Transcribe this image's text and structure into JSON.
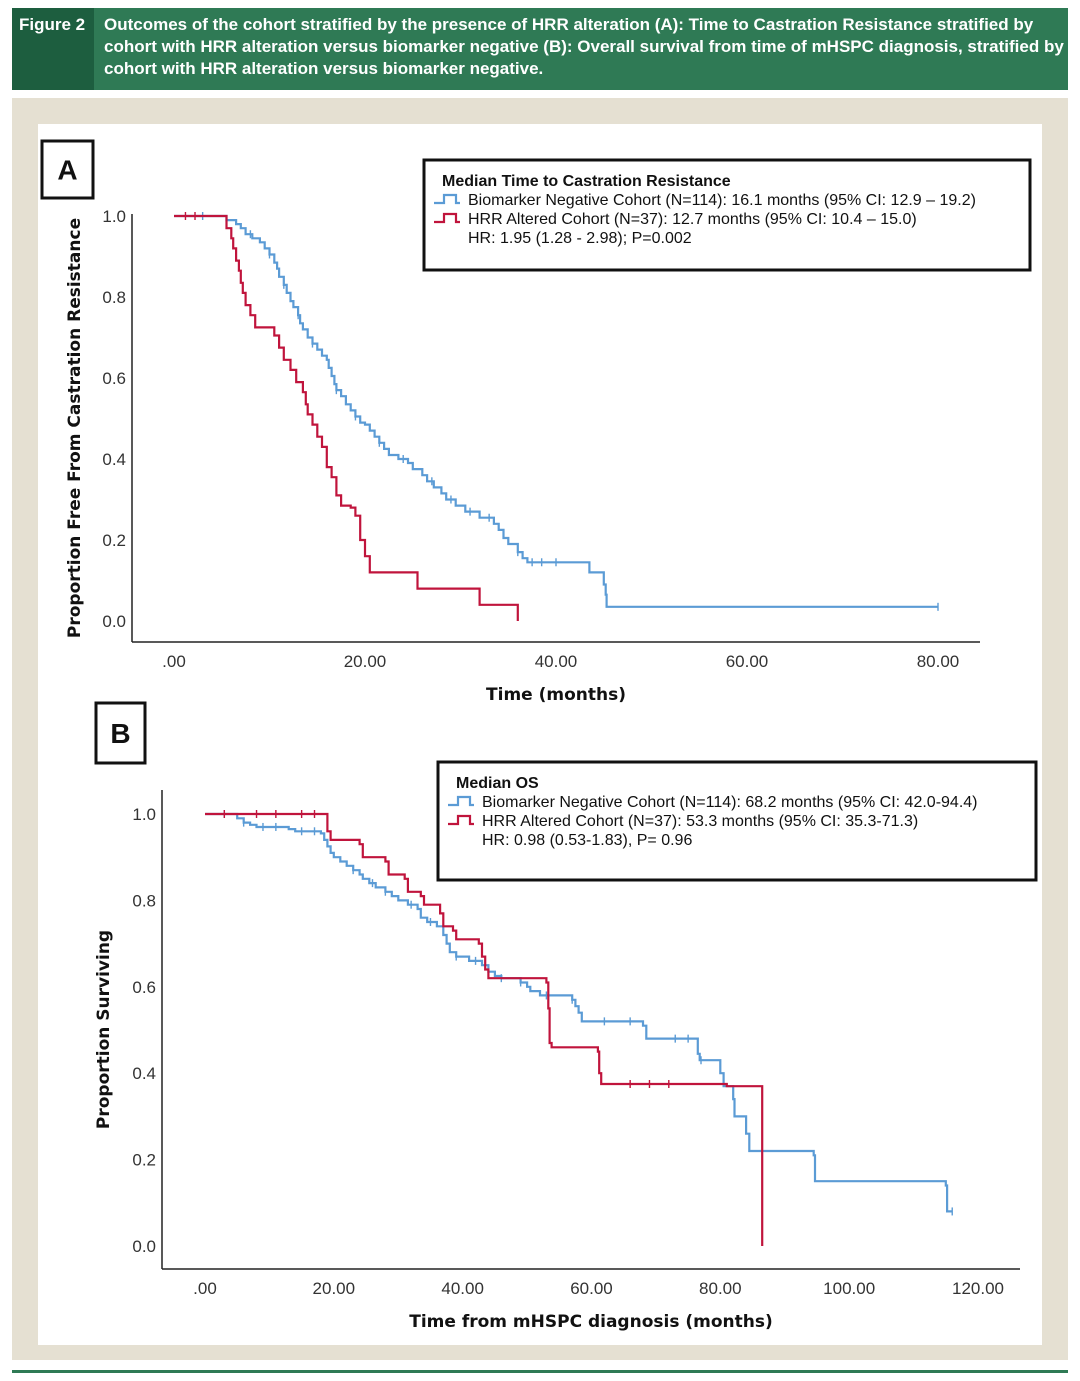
{
  "figure": {
    "label": "Figure 2",
    "caption": "Outcomes of the cohort stratified by the presence of HRR alteration (A): Time to Castration Resistance stratified by cohort with HRR alteration versus biomarker negative (B): Overall survival from time of mHSPC diagnosis, stratified by cohort with HRR alteration versus biomarker negative."
  },
  "colors": {
    "blue": "#5b9bd5",
    "red": "#c0143c",
    "green": "#2f7a55",
    "frame": "#e5e0d2"
  },
  "chart_data": [
    {
      "type": "line",
      "panel": "A",
      "title": "Time to Castration Resistance",
      "xlabel": "Time (months)",
      "ylabel": "Proportion Free From Castration Resistance",
      "xlim": [
        -2,
        84
      ],
      "ylim": [
        0,
        1.0
      ],
      "xticks": [
        ".00",
        "20.00",
        "40.00",
        "60.00",
        "80.00"
      ],
      "xtick_values": [
        0,
        20,
        40,
        60,
        80
      ],
      "yticks": [
        "0.0",
        "0.2",
        "0.4",
        "0.6",
        "0.8",
        "1.0"
      ],
      "ytick_values": [
        0,
        0.2,
        0.4,
        0.6,
        0.8,
        1.0
      ],
      "legend": {
        "title": "Median Time to Castration Resistance",
        "entries": [
          "Biomarker Negative Cohort (N=114): 16.1 months (95% CI: 12.9 – 19.2)",
          "HRR Altered Cohort (N=37): 12.7 months (95% CI: 10.4 – 15.0)"
        ],
        "note": "HR: 1.95 (1.28 - 2.98); P=0.002",
        "position": "top-right"
      },
      "series": [
        {
          "name": "Biomarker Negative Cohort",
          "color": "blue",
          "points": [
            [
              0,
              1.0
            ],
            [
              4.5,
              1.0
            ],
            [
              5.5,
              0.99
            ],
            [
              6.5,
              0.98
            ],
            [
              7,
              0.97
            ],
            [
              7.5,
              0.955
            ],
            [
              8.2,
              0.945
            ],
            [
              9,
              0.935
            ],
            [
              9.5,
              0.92
            ],
            [
              10,
              0.905
            ],
            [
              10.5,
              0.885
            ],
            [
              10.8,
              0.87
            ],
            [
              11,
              0.85
            ],
            [
              11.5,
              0.83
            ],
            [
              11.8,
              0.81
            ],
            [
              12.2,
              0.79
            ],
            [
              12.5,
              0.775
            ],
            [
              13,
              0.755
            ],
            [
              13.2,
              0.735
            ],
            [
              13.5,
              0.72
            ],
            [
              14,
              0.7
            ],
            [
              14.5,
              0.685
            ],
            [
              15,
              0.67
            ],
            [
              15.5,
              0.655
            ],
            [
              16,
              0.645
            ],
            [
              16.2,
              0.625
            ],
            [
              16.5,
              0.605
            ],
            [
              16.8,
              0.585
            ],
            [
              17,
              0.57
            ],
            [
              17.5,
              0.555
            ],
            [
              18,
              0.535
            ],
            [
              18.5,
              0.52
            ],
            [
              19,
              0.505
            ],
            [
              19.5,
              0.49
            ],
            [
              20,
              0.485
            ],
            [
              20.5,
              0.47
            ],
            [
              21,
              0.455
            ],
            [
              21.5,
              0.44
            ],
            [
              22,
              0.425
            ],
            [
              22.5,
              0.41
            ],
            [
              23.5,
              0.4
            ],
            [
              24.5,
              0.39
            ],
            [
              25,
              0.375
            ],
            [
              26,
              0.36
            ],
            [
              26.5,
              0.345
            ],
            [
              27.2,
              0.33
            ],
            [
              28,
              0.315
            ],
            [
              28.5,
              0.3
            ],
            [
              29.5,
              0.285
            ],
            [
              30.5,
              0.27
            ],
            [
              32,
              0.255
            ],
            [
              33.5,
              0.24
            ],
            [
              34,
              0.225
            ],
            [
              34.5,
              0.205
            ],
            [
              35,
              0.19
            ],
            [
              36,
              0.17
            ],
            [
              36.5,
              0.155
            ],
            [
              37,
              0.145
            ],
            [
              43.5,
              0.12
            ],
            [
              45,
              0.09
            ],
            [
              45.2,
              0.065
            ],
            [
              45.3,
              0.035
            ],
            [
              80,
              0.035
            ]
          ],
          "censor_x": [
            3,
            8,
            10,
            11.5,
            13,
            14.5,
            17,
            19,
            21.5,
            24,
            27,
            29,
            31,
            33,
            36,
            37.5,
            38.5,
            40,
            80
          ]
        },
        {
          "name": "HRR Altered Cohort",
          "color": "red",
          "points": [
            [
              0,
              1.0
            ],
            [
              4.5,
              1.0
            ],
            [
              5.5,
              0.97
            ],
            [
              6,
              0.945
            ],
            [
              6.2,
              0.92
            ],
            [
              6.5,
              0.89
            ],
            [
              6.8,
              0.865
            ],
            [
              7,
              0.835
            ],
            [
              7.2,
              0.81
            ],
            [
              7.5,
              0.78
            ],
            [
              8,
              0.755
            ],
            [
              8.5,
              0.725
            ],
            [
              10.5,
              0.705
            ],
            [
              11,
              0.675
            ],
            [
              11.5,
              0.645
            ],
            [
              12.2,
              0.62
            ],
            [
              12.8,
              0.59
            ],
            [
              13.5,
              0.565
            ],
            [
              13.8,
              0.535
            ],
            [
              14,
              0.51
            ],
            [
              14.5,
              0.485
            ],
            [
              15,
              0.455
            ],
            [
              15.5,
              0.43
            ],
            [
              16,
              0.38
            ],
            [
              16.5,
              0.355
            ],
            [
              17,
              0.31
            ],
            [
              17.5,
              0.285
            ],
            [
              18.5,
              0.28
            ],
            [
              19,
              0.26
            ],
            [
              19.5,
              0.2
            ],
            [
              20,
              0.16
            ],
            [
              20.5,
              0.12
            ],
            [
              25.5,
              0.08
            ],
            [
              32,
              0.04
            ],
            [
              36,
              0.04
            ],
            [
              36,
              0.0
            ]
          ],
          "censor_x": [
            1.2,
            2.2
          ]
        }
      ]
    },
    {
      "type": "line",
      "panel": "B",
      "title": "Overall survival from time of mHSPC diagnosis",
      "xlabel": "Time from mHSPC diagnosis (months)",
      "ylabel": "Proportion Surviving",
      "xlim": [
        -7,
        127
      ],
      "ylim": [
        0,
        1.0
      ],
      "xticks": [
        ".00",
        "20.00",
        "40.00",
        "60.00",
        "80.00",
        "100.00",
        "120.00"
      ],
      "xtick_values": [
        0,
        20,
        40,
        60,
        80,
        100,
        120
      ],
      "yticks": [
        "0.0",
        "0.2",
        "0.4",
        "0.6",
        "0.8",
        "1.0"
      ],
      "ytick_values": [
        0,
        0.2,
        0.4,
        0.6,
        0.8,
        1.0
      ],
      "legend": {
        "title": "Median OS",
        "entries": [
          "Biomarker Negative Cohort (N=114): 68.2 months (95% CI: 42.0-94.4)",
          "HRR Altered Cohort (N=37): 53.3 months (95% CI: 35.3-71.3)"
        ],
        "note": "HR: 0.98 (0.53-1.83), P= 0.96",
        "position": "top-right"
      },
      "series": [
        {
          "name": "Biomarker Negative Cohort",
          "color": "blue",
          "points": [
            [
              0,
              1.0
            ],
            [
              5,
              0.99
            ],
            [
              6,
              0.98
            ],
            [
              7,
              0.975
            ],
            [
              8,
              0.97
            ],
            [
              13,
              0.965
            ],
            [
              14,
              0.96
            ],
            [
              18,
              0.955
            ],
            [
              18.5,
              0.94
            ],
            [
              19,
              0.925
            ],
            [
              19.5,
              0.91
            ],
            [
              20,
              0.9
            ],
            [
              21,
              0.89
            ],
            [
              22,
              0.88
            ],
            [
              23,
              0.87
            ],
            [
              24,
              0.86
            ],
            [
              24.5,
              0.85
            ],
            [
              25.5,
              0.84
            ],
            [
              26.5,
              0.83
            ],
            [
              28,
              0.82
            ],
            [
              29,
              0.81
            ],
            [
              30,
              0.8
            ],
            [
              31.5,
              0.79
            ],
            [
              33,
              0.78
            ],
            [
              33.5,
              0.76
            ],
            [
              34.5,
              0.75
            ],
            [
              36,
              0.74
            ],
            [
              37,
              0.72
            ],
            [
              37.5,
              0.7
            ],
            [
              38,
              0.68
            ],
            [
              39,
              0.67
            ],
            [
              41,
              0.66
            ],
            [
              43,
              0.65
            ],
            [
              44,
              0.635
            ],
            [
              45,
              0.625
            ],
            [
              46,
              0.62
            ],
            [
              49,
              0.61
            ],
            [
              50,
              0.6
            ],
            [
              50.5,
              0.59
            ],
            [
              52,
              0.58
            ],
            [
              57,
              0.57
            ],
            [
              57.5,
              0.555
            ],
            [
              58,
              0.54
            ],
            [
              58.5,
              0.52
            ],
            [
              68,
              0.51
            ],
            [
              68.5,
              0.48
            ],
            [
              76.5,
              0.445
            ],
            [
              76.8,
              0.43
            ],
            [
              80,
              0.4
            ],
            [
              80.5,
              0.37
            ],
            [
              82,
              0.34
            ],
            [
              82.2,
              0.3
            ],
            [
              84,
              0.26
            ],
            [
              84.5,
              0.22
            ],
            [
              94.5,
              0.21
            ],
            [
              94.7,
              0.15
            ],
            [
              115,
              0.14
            ],
            [
              115.2,
              0.08
            ],
            [
              116,
              0.08
            ]
          ],
          "censor_x": [
            3,
            6,
            9,
            11,
            15,
            17,
            23,
            26,
            28,
            32,
            35,
            39,
            42,
            46,
            49,
            53,
            57,
            62,
            66,
            73,
            75,
            77,
            116
          ]
        },
        {
          "name": "HRR Altered Cohort",
          "color": "red",
          "points": [
            [
              0,
              1.0
            ],
            [
              18,
              1.0
            ],
            [
              19,
              0.96
            ],
            [
              19.5,
              0.94
            ],
            [
              24,
              0.93
            ],
            [
              24.5,
              0.9
            ],
            [
              28,
              0.89
            ],
            [
              28.5,
              0.86
            ],
            [
              31,
              0.85
            ],
            [
              31.5,
              0.82
            ],
            [
              33.5,
              0.81
            ],
            [
              34,
              0.79
            ],
            [
              36.5,
              0.77
            ],
            [
              37,
              0.74
            ],
            [
              38.5,
              0.73
            ],
            [
              39,
              0.71
            ],
            [
              42.5,
              0.7
            ],
            [
              43,
              0.67
            ],
            [
              43.5,
              0.64
            ],
            [
              44,
              0.62
            ],
            [
              53,
              0.61
            ],
            [
              53.3,
              0.55
            ],
            [
              53.5,
              0.47
            ],
            [
              53.8,
              0.46
            ],
            [
              61,
              0.45
            ],
            [
              61.2,
              0.4
            ],
            [
              61.5,
              0.375
            ],
            [
              81,
              0.37
            ],
            [
              86.5,
              0.37
            ],
            [
              86.5,
              0.0
            ]
          ],
          "censor_x": [
            3,
            8,
            11,
            15,
            17,
            66,
            69,
            72
          ]
        }
      ]
    }
  ]
}
